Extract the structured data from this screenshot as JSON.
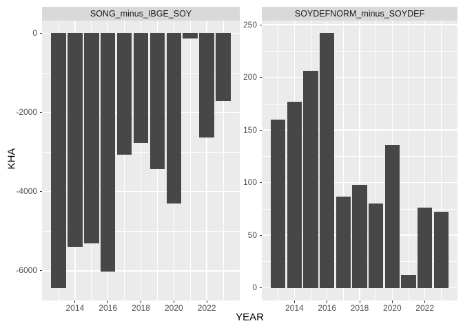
{
  "chart_data": {
    "type": "bar",
    "xlabel": "YEAR",
    "ylabel": "KHA",
    "legend": "none",
    "grid": true,
    "categories": [
      2013,
      2014,
      2015,
      2016,
      2017,
      2018,
      2019,
      2020,
      2021,
      2022,
      2023
    ],
    "xlim": [
      2012,
      2024
    ],
    "xticks": [
      2014,
      2016,
      2018,
      2020,
      2022
    ],
    "xticks_minor": [
      2013,
      2015,
      2017,
      2019,
      2021,
      2023
    ],
    "facets": [
      {
        "label": "SONG_minus_IBGE_SOY",
        "values": [
          -6440,
          -5390,
          -5310,
          -6020,
          -3060,
          -2780,
          -3440,
          -4300,
          -140,
          -2630,
          -1710
        ],
        "ylim": [
          -6750,
          320
        ],
        "yticks": [
          0,
          -2000,
          -4000,
          -6000
        ],
        "yticks_minor": [
          -1000,
          -3000,
          -5000
        ]
      },
      {
        "label": "SOYDEFNORM_minus_SOYDEF",
        "values": [
          160,
          177,
          206,
          242,
          87,
          98,
          80,
          136,
          12,
          76,
          72
        ],
        "ylim": [
          -12,
          254
        ],
        "yticks": [
          0,
          50,
          100,
          150,
          200,
          250
        ],
        "yticks_minor": [
          25,
          75,
          125,
          175,
          225
        ]
      }
    ]
  },
  "colors": {
    "bar": "#474747",
    "panel_background": "#ebebeb",
    "strip_background": "#d9d9d9",
    "strip_text": "#1a1a1a",
    "gridline": "#ffffff",
    "tick_label": "#4d4d4d",
    "tick_mark": "#333333",
    "axis_title": "#000000",
    "figure_background": "#ffffff"
  }
}
